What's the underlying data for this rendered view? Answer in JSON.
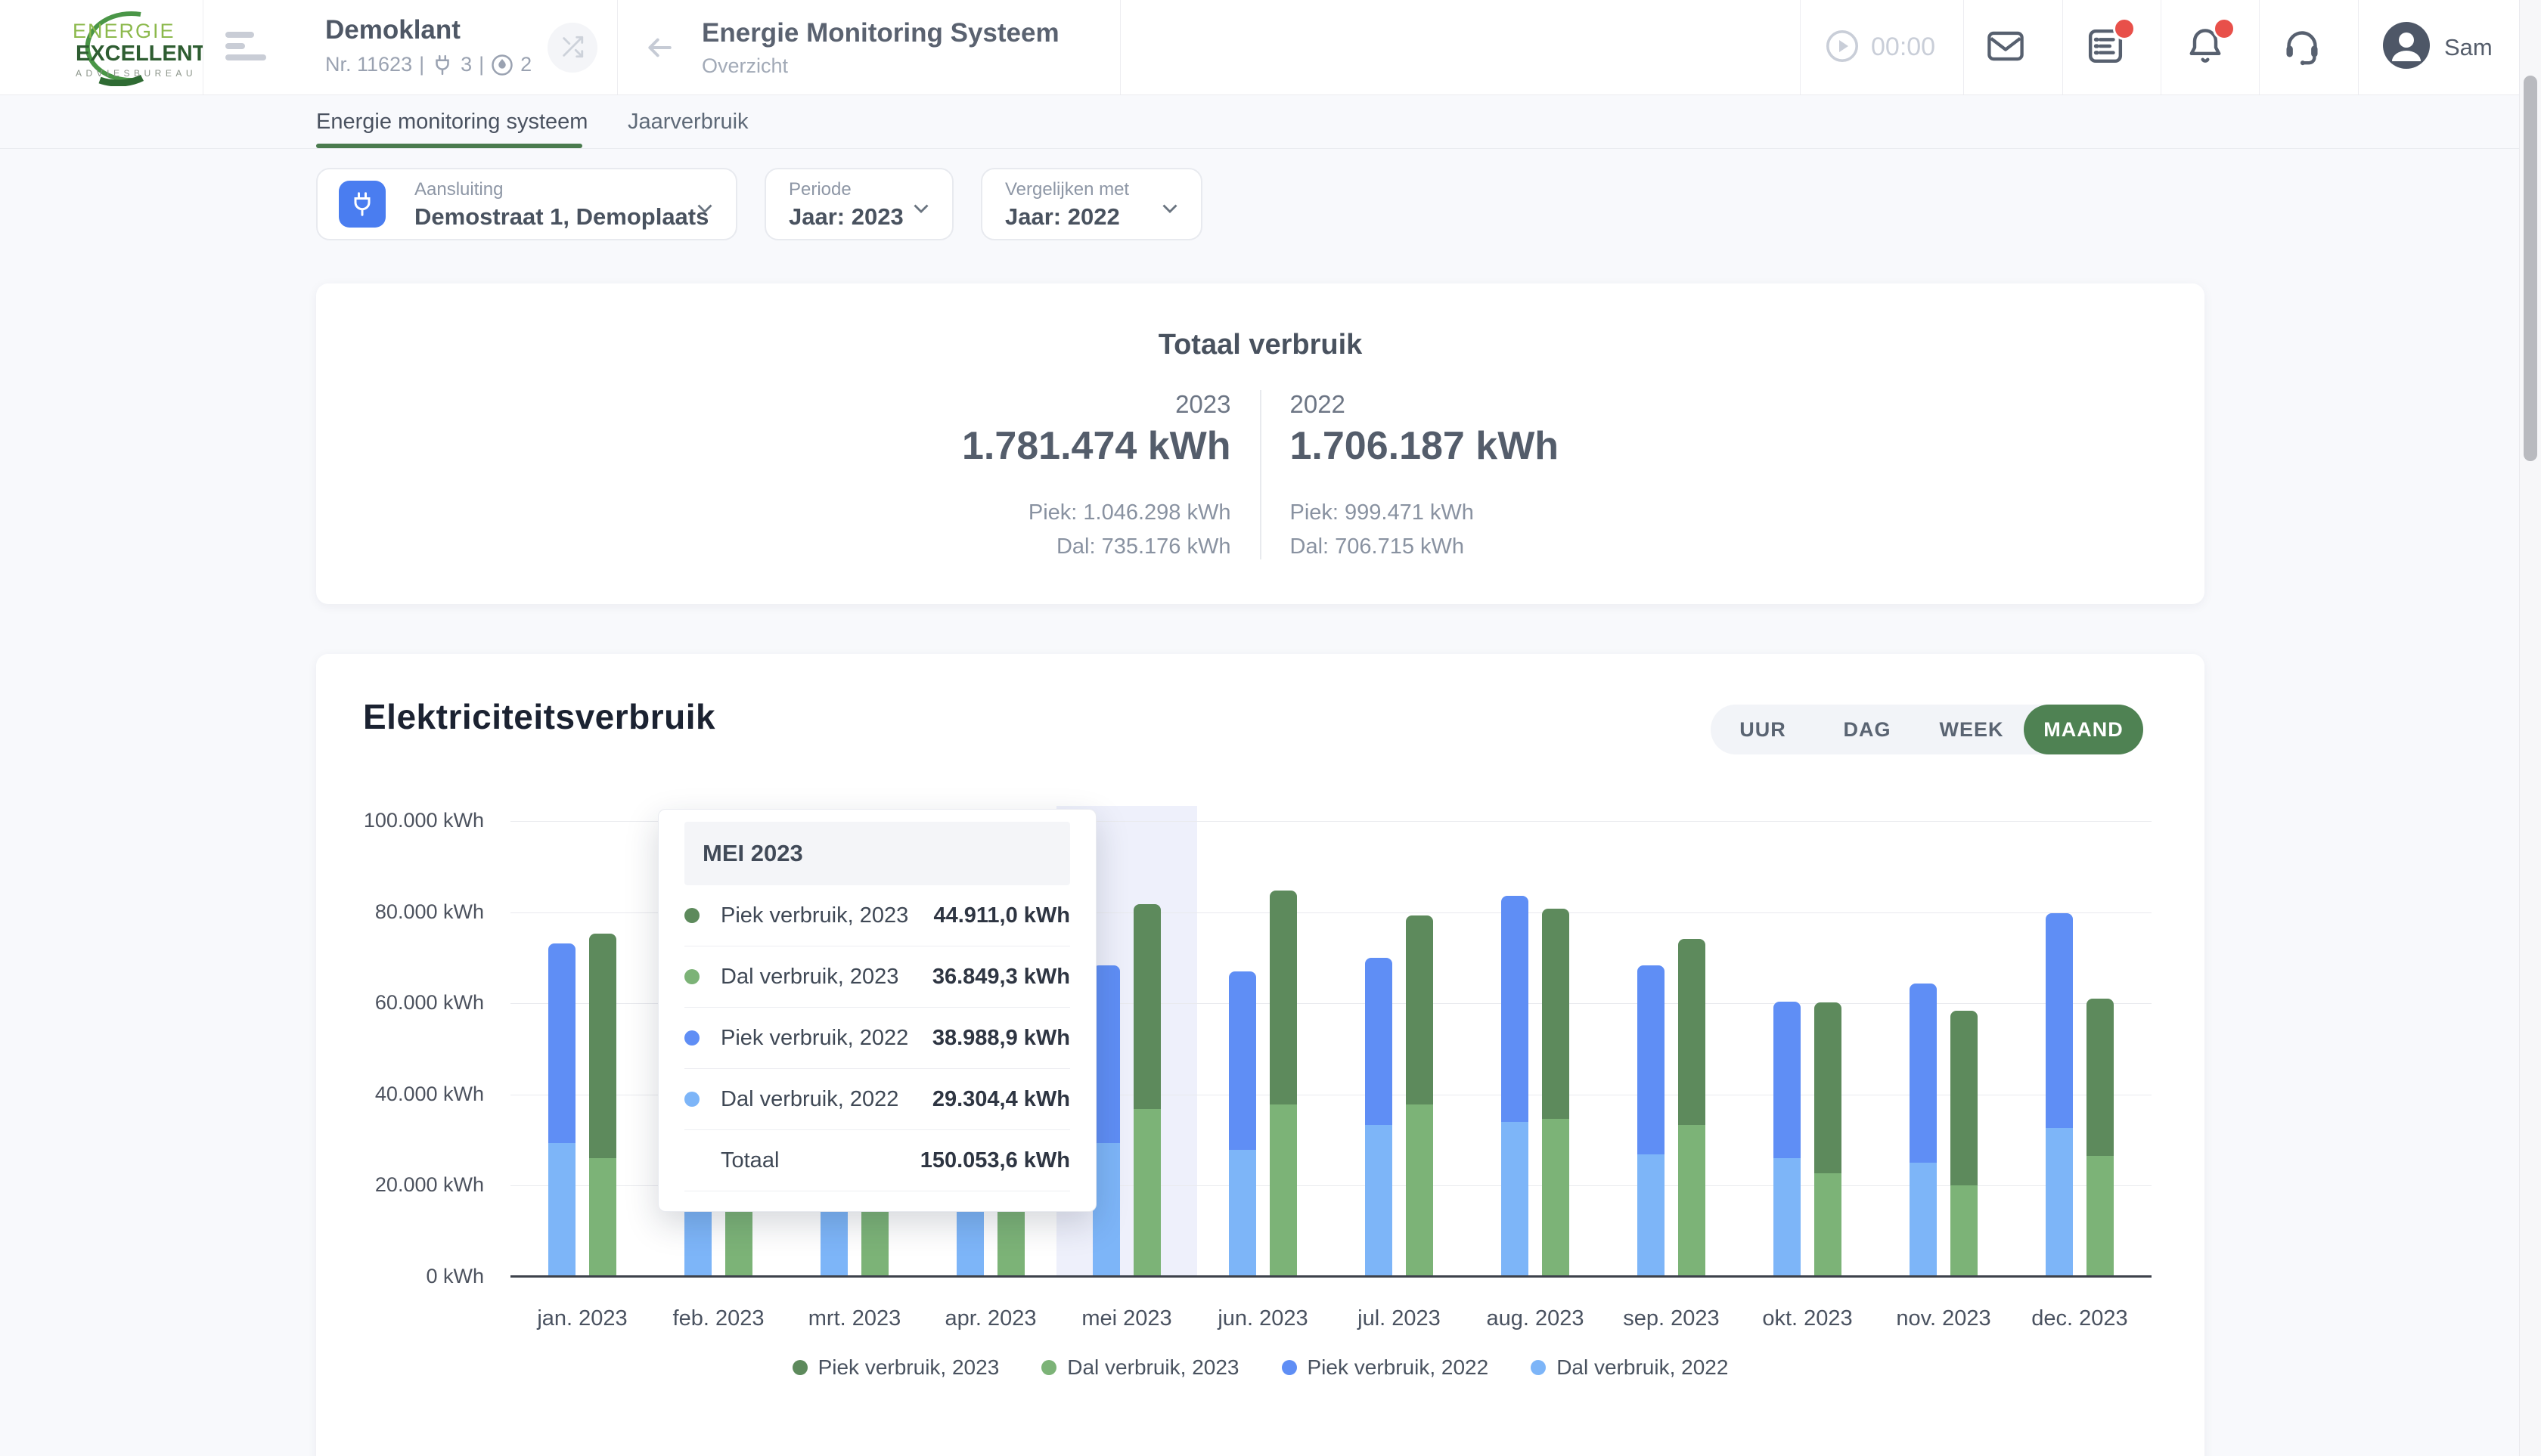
{
  "colors": {
    "accent_green": "#4f8253",
    "tab_underline_green": "#4a7b4e",
    "piek_2023": "#5d8a5c",
    "dal_2023": "#7cb377",
    "piek_2022": "#5f8ef5",
    "dal_2022": "#7db5f8",
    "badge_red": "#e8504a",
    "filter_icon_blue": "#4a7df0",
    "highlight_band": "#eef0fb"
  },
  "icons": [
    "menu-icon",
    "shuffle-icon",
    "back-arrow-icon",
    "plug-icon",
    "flame-icon",
    "play-timer-icon",
    "mail-icon",
    "tasks-icon",
    "bell-icon",
    "headset-icon",
    "avatar-icon",
    "chevron-down-icon"
  ],
  "header": {
    "logo": {
      "line1": "ENERGIE",
      "line2": "EXCELLENT",
      "line3": "ADVIESBUREAU"
    },
    "client": {
      "name": "Demoklant",
      "number": "Nr. 11623",
      "sep": "|",
      "electric_count": "3",
      "gas_count": "2"
    },
    "page": {
      "title": "Energie Monitoring Systeem",
      "subtitle": "Overzicht"
    },
    "timer": "00:00",
    "user": "Sam"
  },
  "tabs": {
    "monitoring": "Energie monitoring systeem",
    "jaarverbruik": "Jaarverbruik"
  },
  "filters": {
    "aansluiting": {
      "label": "Aansluiting",
      "value": "Demostraat 1, Demoplaats"
    },
    "periode": {
      "label": "Periode",
      "value": "Jaar: 2023"
    },
    "vergelijken": {
      "label": "Vergelijken met",
      "value": "Jaar: 2022"
    }
  },
  "totals": {
    "title": "Totaal verbruik",
    "col2023": {
      "year": "2023",
      "total": "1.781.474 kWh",
      "piek": "Piek: 1.046.298 kWh",
      "dal": "Dal: 735.176 kWh"
    },
    "col2022": {
      "year": "2022",
      "total": "1.706.187 kWh",
      "piek": "Piek: 999.471 kWh",
      "dal": "Dal: 706.715 kWh"
    }
  },
  "chart_section": {
    "title": "Elektriciteitsverbruik",
    "period_options": [
      "UUR",
      "DAG",
      "WEEK",
      "MAAND"
    ],
    "active_period": "MAAND"
  },
  "tooltip": {
    "title": "MEI 2023",
    "rows": [
      {
        "label": "Piek verbruik, 2023",
        "value": "44.911,0 kWh",
        "color": "#5d8a5c"
      },
      {
        "label": "Dal verbruik, 2023",
        "value": "36.849,3 kWh",
        "color": "#7cb377"
      },
      {
        "label": "Piek verbruik, 2022",
        "value": "38.988,9 kWh",
        "color": "#5f8ef5"
      },
      {
        "label": "Dal verbruik, 2022",
        "value": "29.304,4 kWh",
        "color": "#7db5f8"
      }
    ],
    "total_label": "Totaal",
    "total_value": "150.053,6 kWh"
  },
  "chart_data": {
    "type": "bar",
    "stacked": true,
    "title": "Elektriciteitsverbruik",
    "xlabel": "",
    "ylabel": "",
    "categories": [
      "jan. 2023",
      "feb. 2023",
      "mrt. 2023",
      "apr. 2023",
      "mei 2023",
      "jun. 2023",
      "jul. 2023",
      "aug. 2023",
      "sep. 2023",
      "okt. 2023",
      "nov. 2023",
      "dec. 2023"
    ],
    "series": [
      {
        "name": "Piek verbruik, 2023",
        "stack": "2023",
        "color": "#5d8a5c",
        "values": [
          49300,
          44000,
          42000,
          40000,
          44911.0,
          47000,
          41500,
          46000,
          40800,
          37400,
          38300,
          34600
        ]
      },
      {
        "name": "Dal verbruik, 2023",
        "stack": "2023",
        "color": "#7cb377",
        "values": [
          26000,
          24000,
          25000,
          26000,
          36849.3,
          37800,
          37800,
          34700,
          33400,
          22800,
          20100,
          26500
        ]
      },
      {
        "name": "Piek verbruik, 2022",
        "stack": "2022",
        "color": "#5f8ef5",
        "values": [
          43900,
          40000,
          38000,
          36000,
          38988.9,
          39100,
          36700,
          49600,
          41500,
          34300,
          39300,
          47200
        ]
      },
      {
        "name": "Dal verbruik, 2022",
        "stack": "2022",
        "color": "#7db5f8",
        "values": [
          29300,
          27000,
          28000,
          27000,
          29304.4,
          27900,
          33300,
          34000,
          26800,
          26000,
          25100,
          32600
        ]
      }
    ],
    "ylim": [
      0,
      100000
    ],
    "y_ticks": [
      "0 kWh",
      "20.000 kWh",
      "40.000 kWh",
      "60.000 kWh",
      "80.000 kWh",
      "100.000 kWh"
    ],
    "grid": true,
    "legend_position": "bottom",
    "legend": [
      "Piek verbruik, 2023",
      "Dal verbruik, 2023",
      "Piek verbruik, 2022",
      "Dal verbruik, 2022"
    ],
    "highlight_index": 4,
    "highlighted_category": "mei 2023"
  }
}
